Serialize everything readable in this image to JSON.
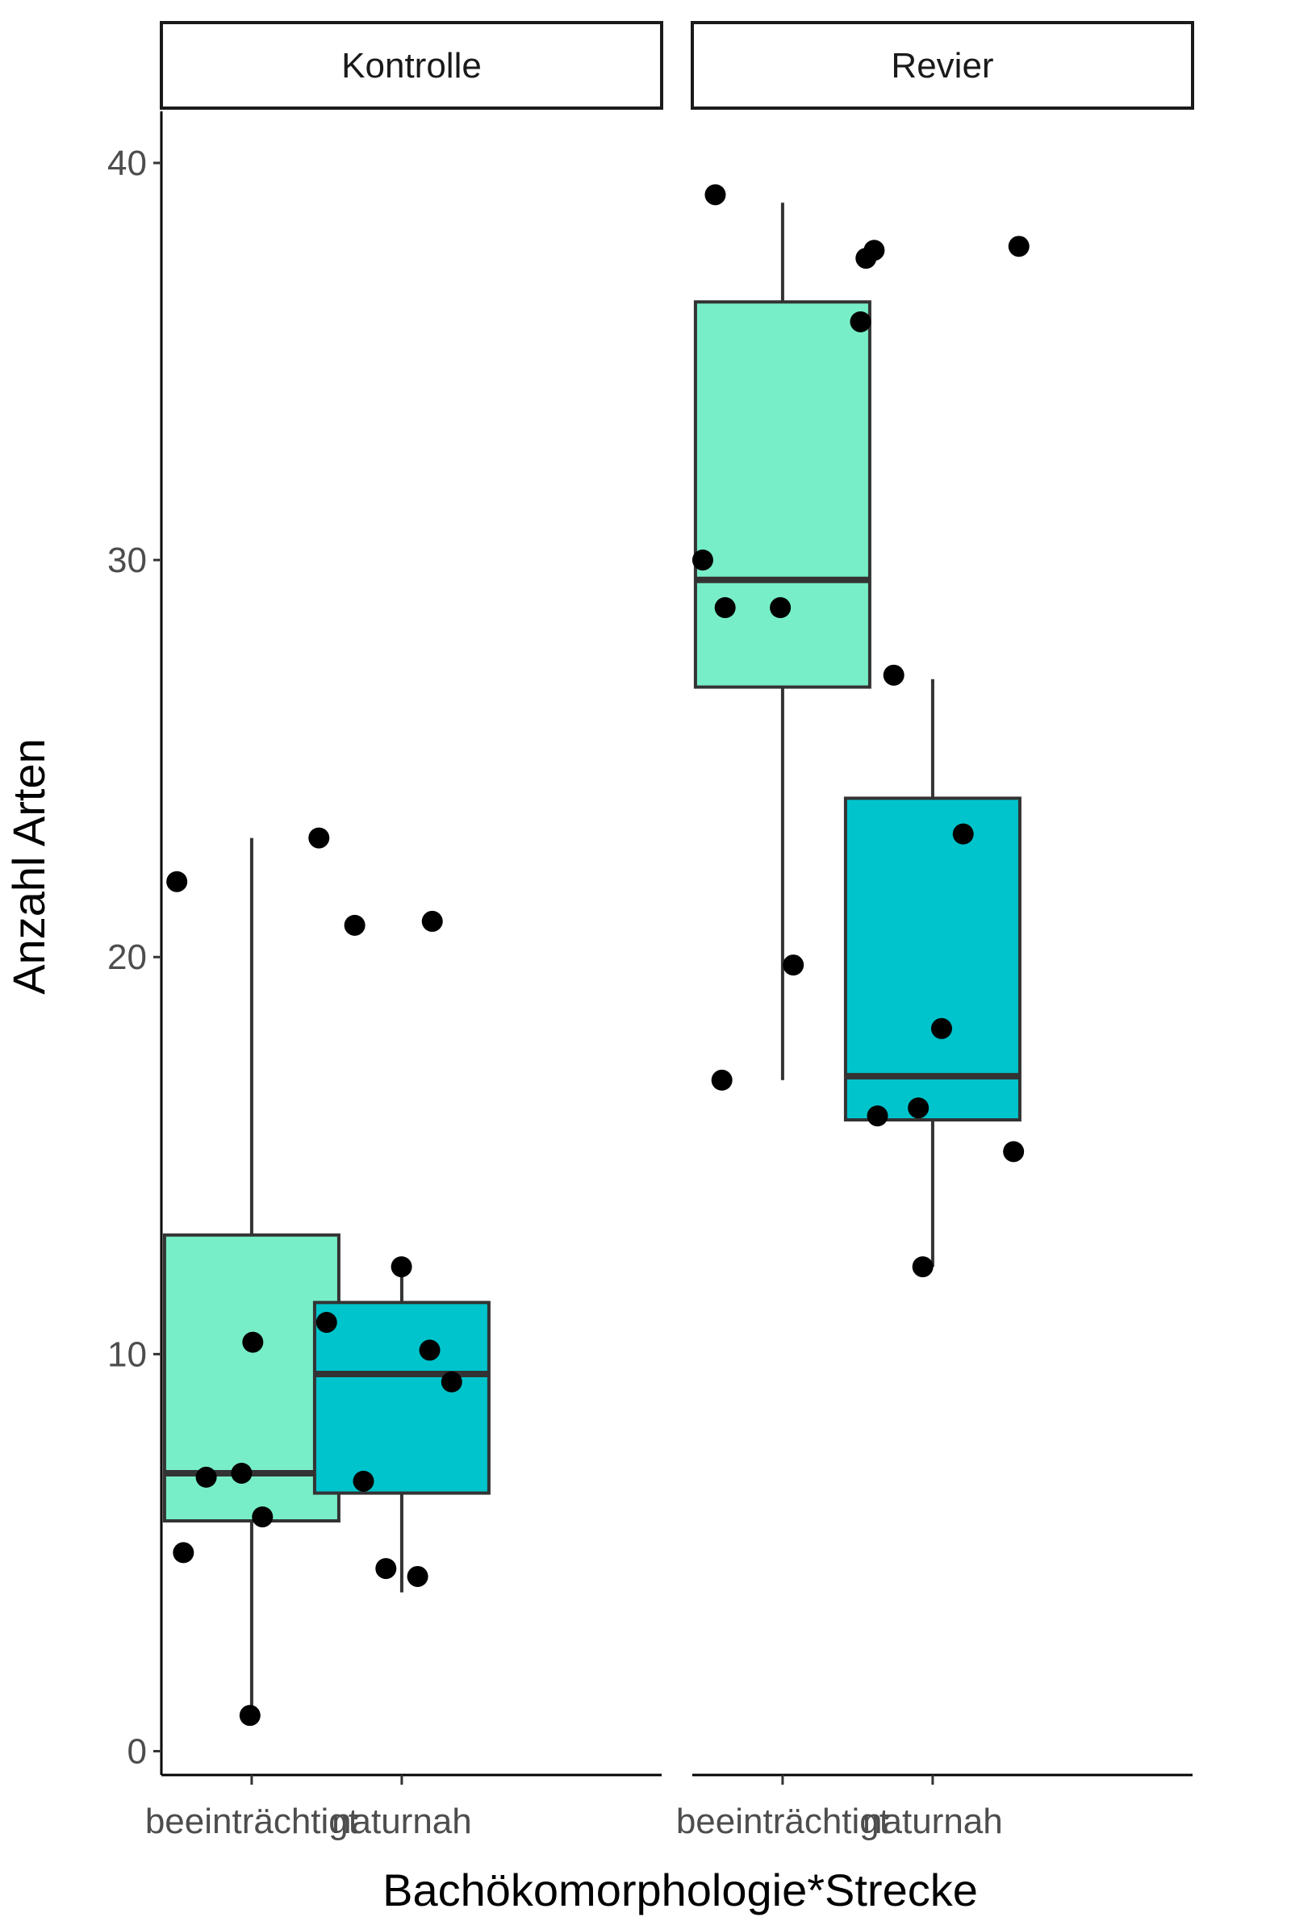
{
  "chart_data": {
    "type": "box",
    "xlabel": "Bachökomorphologie*Strecke",
    "ylabel": "Anzahl Arten",
    "ylim": [
      -0.6,
      41.3
    ],
    "y_ticks": [
      0,
      10,
      20,
      30,
      40
    ],
    "grid": false,
    "legend": "none",
    "facets": [
      {
        "label": "Kontrolle",
        "categories": [
          "beeinträchtigt",
          "naturnah"
        ],
        "boxes": [
          {
            "category": "beeinträchtigt",
            "whisker_low": 1,
            "q1": 5.8,
            "median": 7,
            "q3": 13,
            "whisker_high": 23,
            "fill": "#78eec8"
          },
          {
            "category": "naturnah",
            "whisker_low": 4,
            "q1": 6.5,
            "median": 9.5,
            "q3": 11.3,
            "whisker_high": 12,
            "fill": "#00c4cc"
          }
        ],
        "points": [
          {
            "category": "beeinträchtigt",
            "y": 0.9
          },
          {
            "category": "beeinträchtigt",
            "y": 5.9
          },
          {
            "category": "beeinträchtigt",
            "y": 5
          },
          {
            "category": "beeinträchtigt",
            "y": 6.9
          },
          {
            "category": "beeinträchtigt",
            "y": 7
          },
          {
            "category": "beeinträchtigt",
            "y": 10.3
          },
          {
            "category": "beeinträchtigt",
            "y": 21.9
          },
          {
            "category": "beeinträchtigt",
            "y": 23
          },
          {
            "category": "naturnah",
            "y": 4.4
          },
          {
            "category": "naturnah",
            "y": 4.6
          },
          {
            "category": "naturnah",
            "y": 6.8
          },
          {
            "category": "naturnah",
            "y": 9.3
          },
          {
            "category": "naturnah",
            "y": 10.1
          },
          {
            "category": "naturnah",
            "y": 10.8
          },
          {
            "category": "naturnah",
            "y": 12.2
          },
          {
            "category": "naturnah",
            "y": 20.8
          },
          {
            "category": "naturnah",
            "y": 20.9
          }
        ]
      },
      {
        "label": "Revier",
        "categories": [
          "beeinträchtigt",
          "naturnah"
        ],
        "boxes": [
          {
            "category": "beeinträchtigt",
            "whisker_low": 16.9,
            "q1": 26.8,
            "median": 29.5,
            "q3": 36.5,
            "whisker_high": 39,
            "fill": "#78eec8"
          },
          {
            "category": "naturnah",
            "whisker_low": 12.2,
            "q1": 15.9,
            "median": 17,
            "q3": 24,
            "whisker_high": 27,
            "fill": "#00c4cc"
          }
        ],
        "points": [
          {
            "category": "beeinträchtigt",
            "y": 16.9
          },
          {
            "category": "beeinträchtigt",
            "y": 19.8
          },
          {
            "category": "beeinträchtigt",
            "y": 28.8
          },
          {
            "category": "beeinträchtigt",
            "y": 28.8
          },
          {
            "category": "beeinträchtigt",
            "y": 30
          },
          {
            "category": "beeinträchtigt",
            "y": 36
          },
          {
            "category": "beeinträchtigt",
            "y": 37.6
          },
          {
            "category": "beeinträchtigt",
            "y": 39.2
          },
          {
            "category": "naturnah",
            "y": 12.2
          },
          {
            "category": "naturnah",
            "y": 15.1
          },
          {
            "category": "naturnah",
            "y": 16
          },
          {
            "category": "naturnah",
            "y": 16.2
          },
          {
            "category": "naturnah",
            "y": 18.2
          },
          {
            "category": "naturnah",
            "y": 23.1
          },
          {
            "category": "naturnah",
            "y": 27.1
          },
          {
            "category": "naturnah",
            "y": 37.8
          },
          {
            "category": "naturnah",
            "y": 37.9
          }
        ]
      }
    ]
  }
}
